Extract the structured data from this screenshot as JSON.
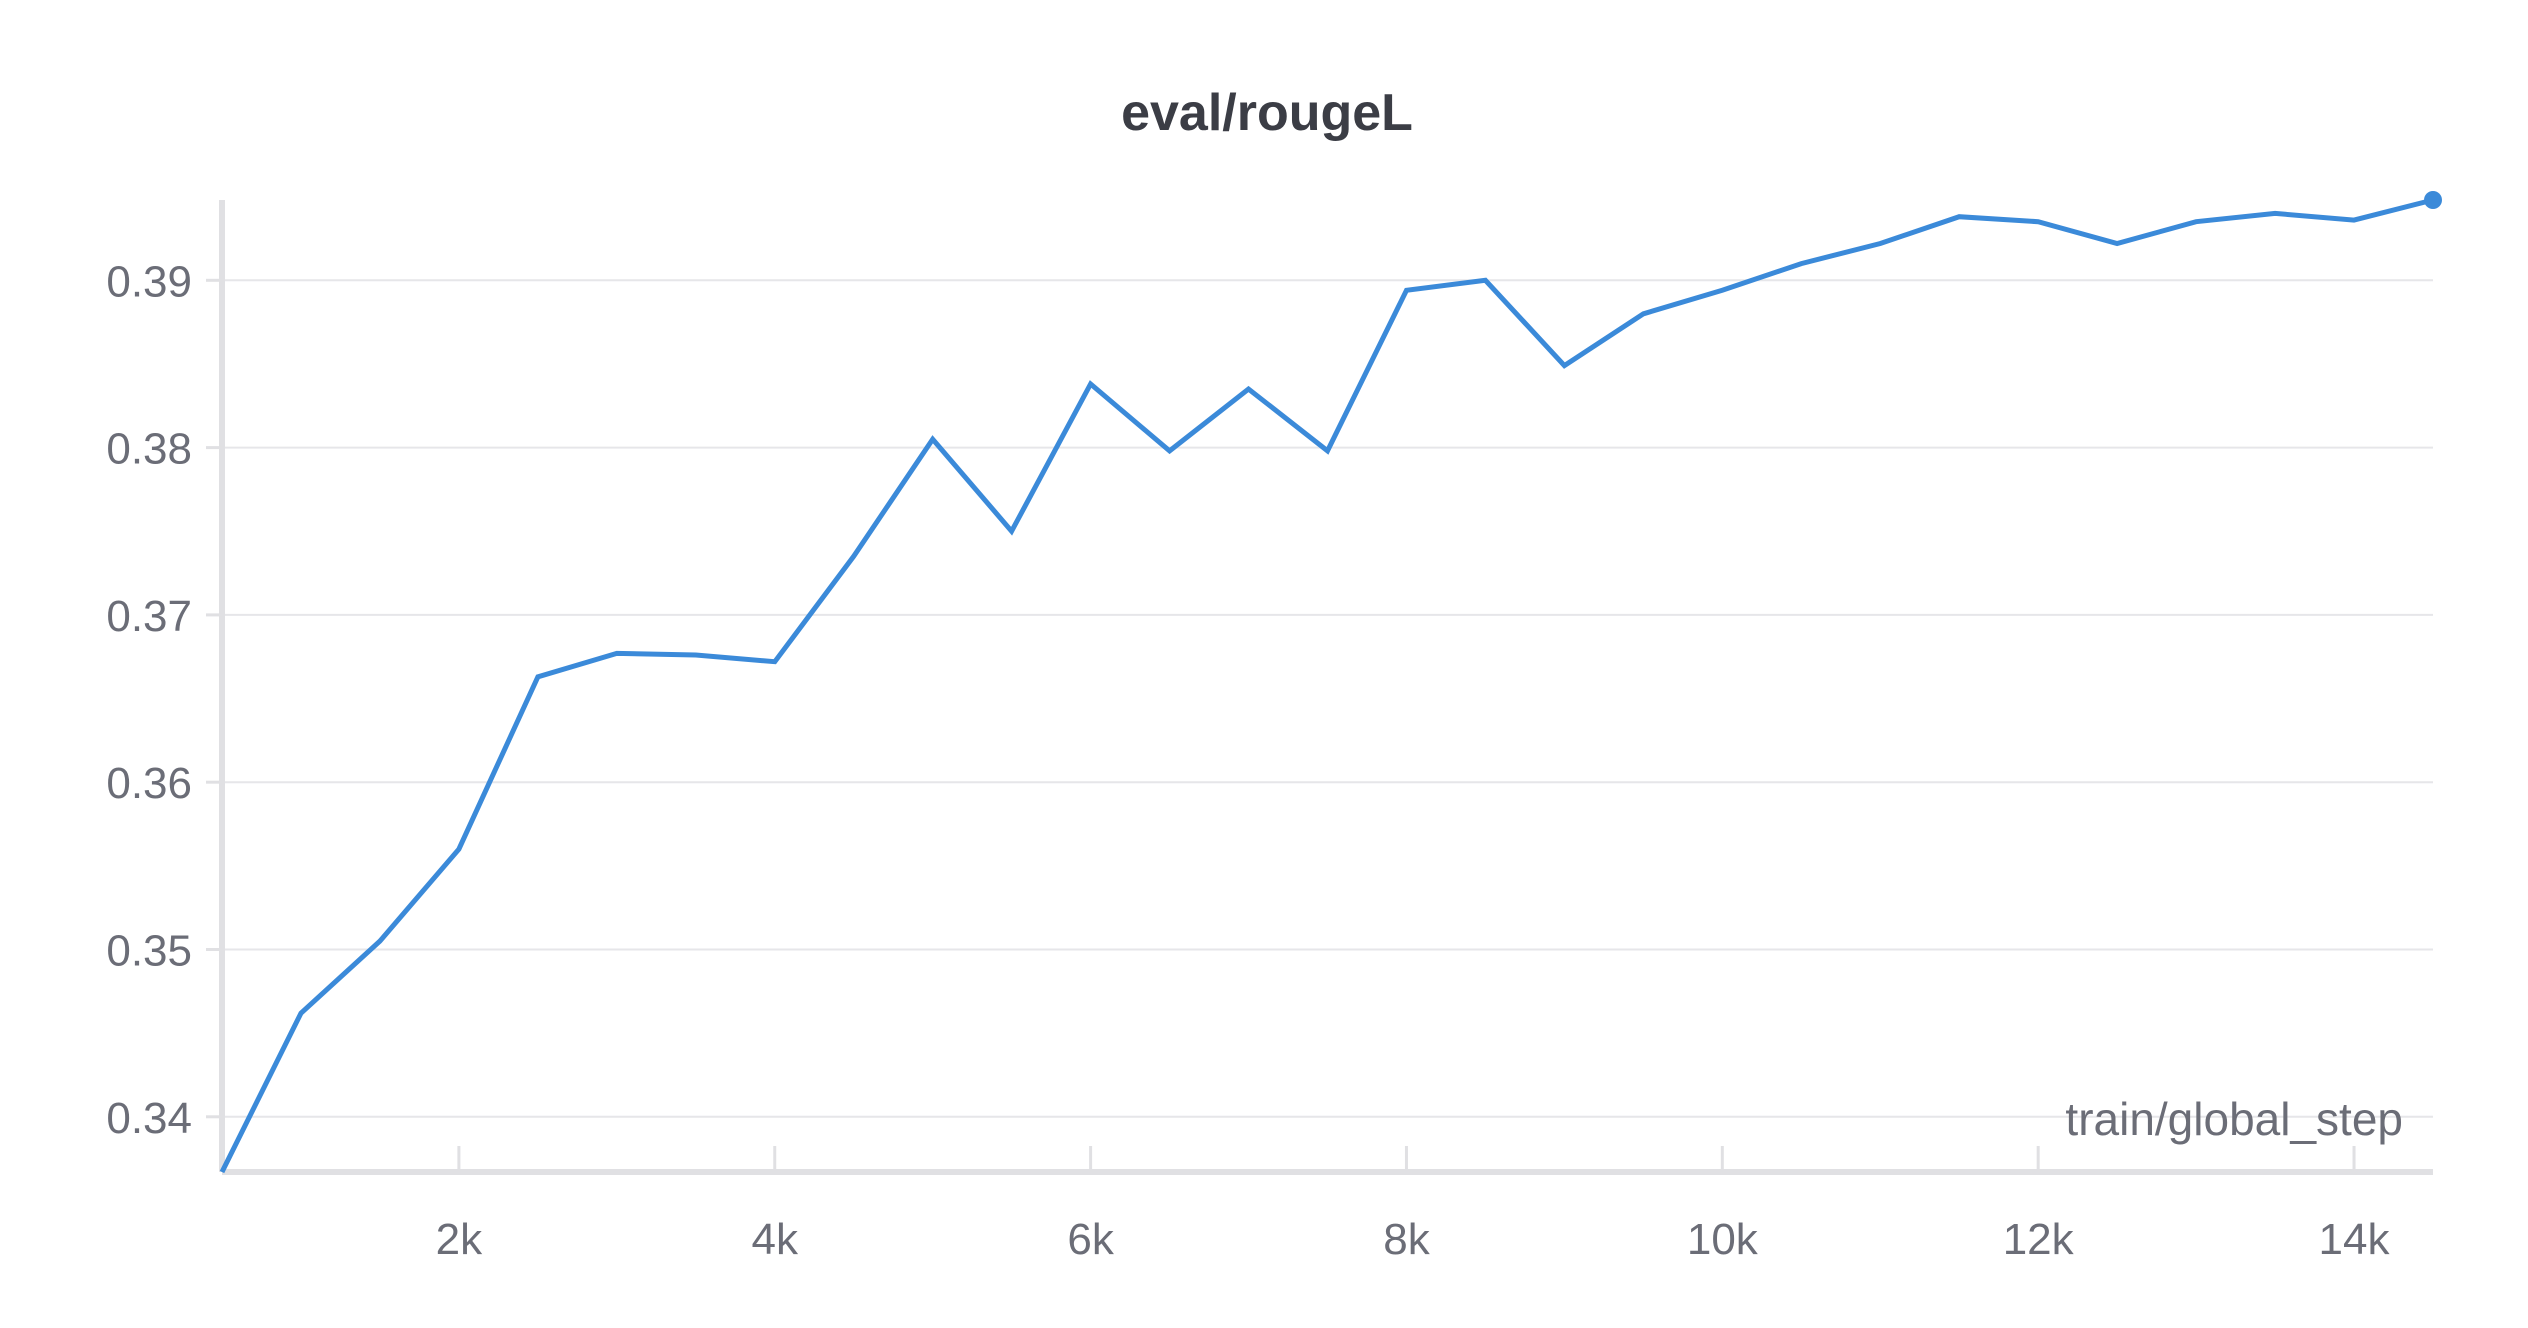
{
  "chart_data": {
    "type": "line",
    "title": "eval/rougeL",
    "xlabel": "train/global_step",
    "ylabel": "",
    "xlim": [
      500,
      14500
    ],
    "ylim": [
      0.3367,
      0.3948
    ],
    "x_ticks": [
      2000,
      4000,
      6000,
      8000,
      10000,
      12000,
      14000
    ],
    "x_tick_labels": [
      "2k",
      "4k",
      "6k",
      "8k",
      "10k",
      "12k",
      "14k"
    ],
    "y_ticks": [
      0.34,
      0.35,
      0.36,
      0.37,
      0.38,
      0.39
    ],
    "y_tick_labels": [
      "0.34",
      "0.35",
      "0.36",
      "0.37",
      "0.38",
      "0.39"
    ],
    "grid": "horizontal",
    "legend": "none",
    "series": [
      {
        "color": "#3b8ad9",
        "x": [
          500,
          1000,
          1500,
          2000,
          2500,
          3000,
          3500,
          4000,
          4500,
          5000,
          5500,
          6000,
          6500,
          7000,
          7500,
          8000,
          8500,
          9000,
          9500,
          10000,
          10500,
          11000,
          11500,
          12000,
          12500,
          13000,
          13500,
          14000,
          14500
        ],
        "y": [
          0.3367,
          0.3462,
          0.3505,
          0.356,
          0.3663,
          0.3677,
          0.3676,
          0.3672,
          0.3735,
          0.3805,
          0.375,
          0.3838,
          0.3798,
          0.3835,
          0.3798,
          0.3894,
          0.39,
          0.3849,
          0.388,
          0.3894,
          0.391,
          0.3922,
          0.3938,
          0.3935,
          0.3922,
          0.3935,
          0.394,
          0.3936,
          0.3948
        ]
      }
    ]
  }
}
